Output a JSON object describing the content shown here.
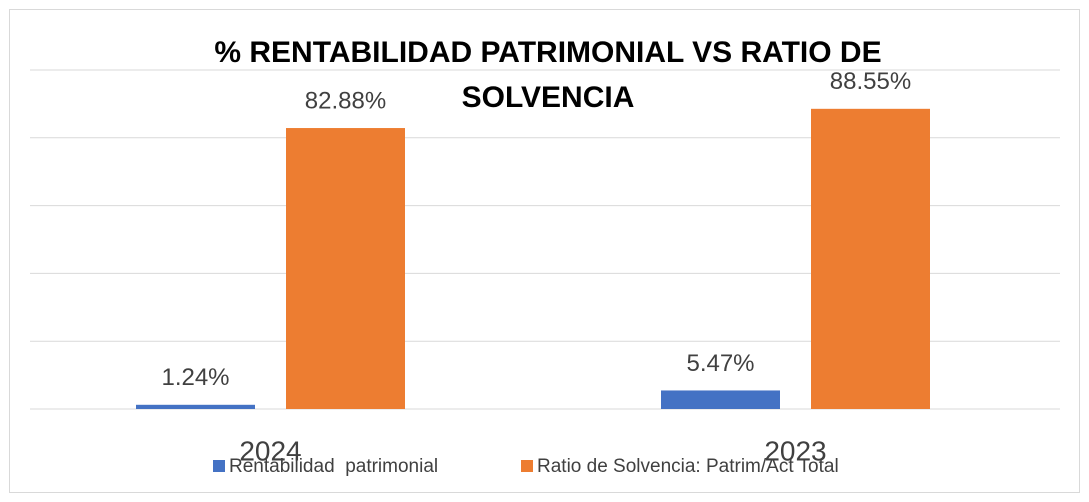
{
  "chart_data": {
    "type": "bar",
    "title": "% RENTABILIDAD PATRIMONIAL VS RATIO DE SOLVENCIA",
    "categories": [
      "2024",
      "2023"
    ],
    "series": [
      {
        "name": "Rentabilidad  patrimonial",
        "color": "#4472c4",
        "values": [
          1.24,
          5.47
        ],
        "value_labels": [
          "1.24%",
          "5.47%"
        ]
      },
      {
        "name": "Ratio de Solvencia: Patrim/Act Total",
        "color": "#ed7d31",
        "values": [
          82.88,
          88.55
        ],
        "value_labels": [
          "82.88%",
          "88.55%"
        ]
      }
    ],
    "ylim": [
      0,
      100
    ],
    "yticks": [
      0,
      20,
      40,
      60,
      80,
      100
    ],
    "grid": true,
    "legend": "bottom"
  }
}
